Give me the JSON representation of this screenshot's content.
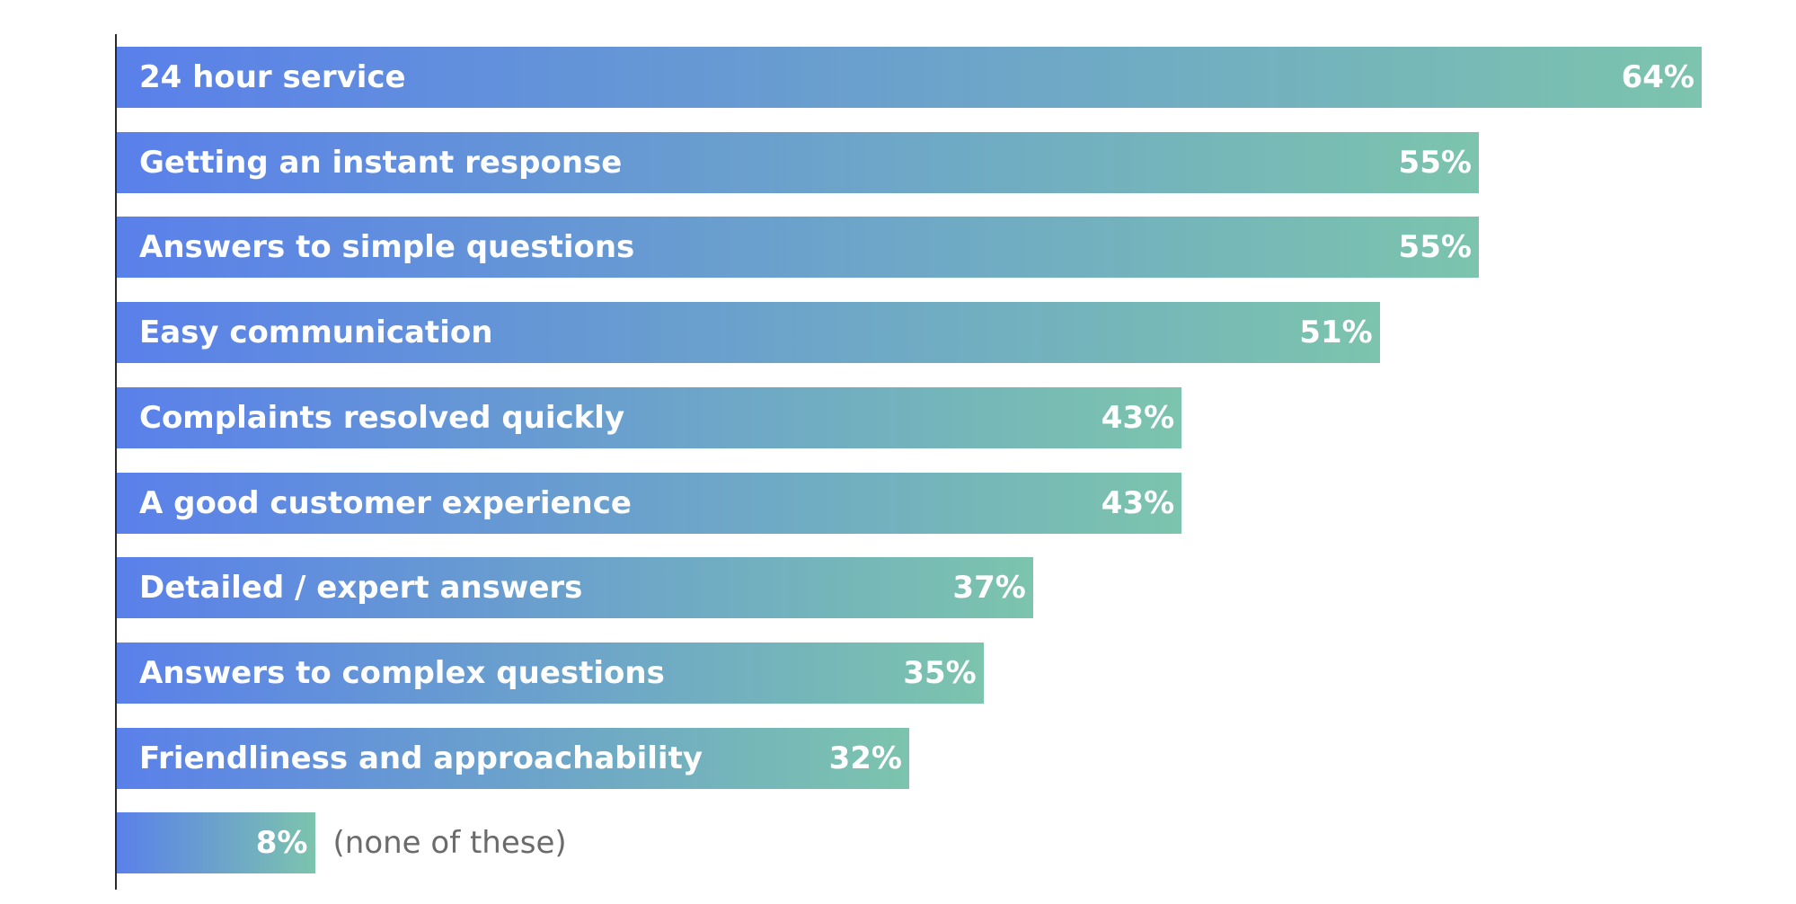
{
  "chart_data": {
    "type": "bar",
    "orientation": "horizontal",
    "categories": [
      "24 hour service",
      "Getting an instant response",
      "Answers to simple questions",
      "Easy communication",
      "Complaints resolved quickly",
      "A good customer experience",
      "Detailed / expert answers",
      "Answers to complex questions",
      "Friendliness and approachability",
      "(none of these)"
    ],
    "values": [
      64,
      55,
      55,
      51,
      43,
      43,
      37,
      35,
      32,
      8
    ],
    "value_labels": [
      "64%",
      "55%",
      "55%",
      "51%",
      "43%",
      "43%",
      "37%",
      "35%",
      "32%",
      "8%"
    ],
    "title": "",
    "xlabel": "",
    "ylabel": "",
    "xlim": [
      0,
      64
    ],
    "grid": false,
    "legend": "none",
    "colors": {
      "gradient_start": "#5a80ea",
      "gradient_end": "#7cc4ad",
      "label_outside": "#6b6b6b",
      "axis": "#2b2b2b"
    }
  }
}
